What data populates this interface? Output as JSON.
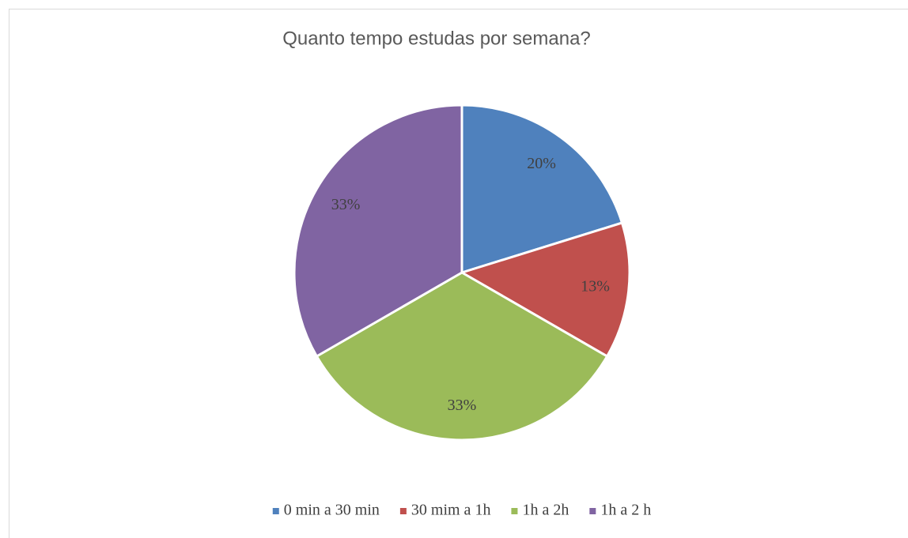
{
  "chart_data": {
    "type": "pie",
    "title": "Quanto tempo estudas por semana?",
    "categories": [
      "0 min a 30 min",
      "30 mim a 1h",
      "1h a 2h",
      "1h a 2 h"
    ],
    "values": [
      20,
      13,
      33,
      33
    ],
    "value_labels": [
      "20%",
      "13%",
      "33%",
      "33%"
    ],
    "colors": [
      "#4f81bd",
      "#c0504d",
      "#9bbb59",
      "#8064a2"
    ],
    "legend": "bottom"
  }
}
